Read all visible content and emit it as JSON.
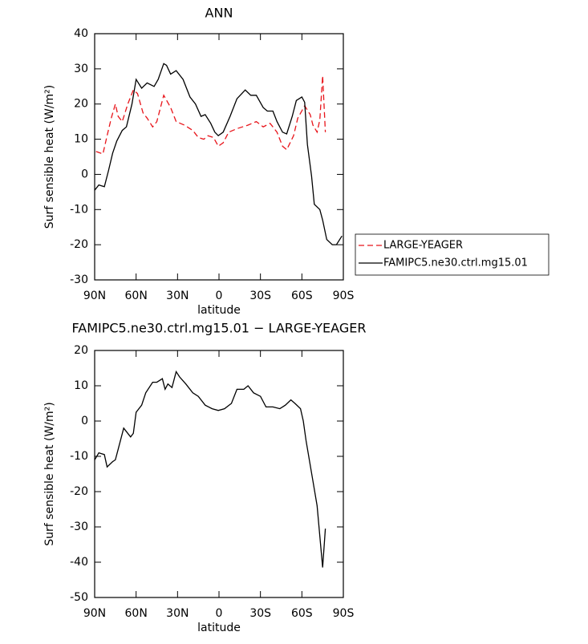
{
  "chart_data": [
    {
      "type": "line",
      "title": "ANN",
      "xlabel": "latitude",
      "ylabel": "Surf sensible heat (W/m²)",
      "xlim": [
        90,
        -90
      ],
      "xticks": [
        {
          "value": 90,
          "label": "90N"
        },
        {
          "value": 60,
          "label": "60N"
        },
        {
          "value": 30,
          "label": "30N"
        },
        0,
        {
          "value": -30,
          "label": "30S"
        },
        {
          "value": -60,
          "label": "60S"
        },
        {
          "value": -90,
          "label": "90S"
        }
      ],
      "ylim": [
        -30,
        40
      ],
      "yticks": [
        -30,
        -20,
        -10,
        0,
        10,
        20,
        30,
        40
      ],
      "legend": "outside-right",
      "series": [
        {
          "name": "LARGE-YEAGER",
          "color": "#e8141a",
          "style": "dashed",
          "x": [
            89,
            84,
            81,
            78,
            75,
            73,
            70,
            66,
            62,
            59,
            55,
            52,
            48,
            45,
            40,
            35,
            31,
            25,
            19,
            15,
            11,
            8,
            4,
            0.5,
            -3,
            -7,
            -13,
            -21,
            -27,
            -32,
            -37,
            -42,
            -46,
            -49,
            -54,
            -57,
            -62,
            -66,
            -68,
            -71,
            -73,
            -75,
            -76,
            -77
          ],
          "values": [
            6.5,
            5.8,
            11,
            16,
            20,
            16.5,
            15,
            20,
            24,
            23,
            17.5,
            16,
            13.5,
            15,
            22.5,
            19,
            15,
            14,
            12.5,
            10.5,
            10,
            11,
            10.5,
            8,
            9,
            12,
            13,
            14,
            15,
            13.5,
            14.5,
            12,
            8,
            7,
            11,
            16,
            19.5,
            17,
            14,
            12,
            15.5,
            28,
            20,
            12
          ]
        },
        {
          "name": "FAMIPC5.ne30.ctrl.mg15.01",
          "color": "#000000",
          "style": "solid",
          "x": [
            90,
            87,
            83,
            80,
            77,
            74,
            70,
            67,
            63,
            60,
            56,
            52,
            47,
            44,
            40,
            38,
            35,
            31,
            26,
            21,
            17,
            13,
            10,
            6,
            3,
            0.5,
            -3,
            -8,
            -13,
            -19,
            -23,
            -27,
            -32,
            -35,
            -39,
            -42,
            -46,
            -49,
            -53,
            -56,
            -60,
            -62,
            -64,
            -67,
            -69,
            -73,
            -75,
            -78,
            -82,
            -85,
            -89
          ],
          "values": [
            -4.5,
            -3,
            -3.5,
            1,
            6,
            9.5,
            12.5,
            13.5,
            20,
            27,
            24.5,
            26,
            25,
            27,
            31.5,
            31,
            28.5,
            29.5,
            27,
            22,
            20,
            16.5,
            17,
            14.5,
            12,
            11,
            12,
            16.5,
            21.5,
            24,
            22.5,
            22.5,
            19,
            18,
            18,
            15,
            12,
            11.5,
            16.5,
            21,
            22,
            20.5,
            8.5,
            -0.5,
            -8.5,
            -10,
            -13,
            -18.5,
            -20,
            -20,
            -17.5
          ]
        }
      ]
    },
    {
      "type": "line",
      "title": "FAMIPC5.ne30.ctrl.mg15.01 − LARGE-YEAGER",
      "xlabel": "latitude",
      "ylabel": "Surf sensible heat (W/m²)",
      "xlim": [
        90,
        -90
      ],
      "xticks": [
        {
          "value": 90,
          "label": "90N"
        },
        {
          "value": 60,
          "label": "60N"
        },
        {
          "value": 30,
          "label": "30N"
        },
        0,
        {
          "value": -30,
          "label": "30S"
        },
        {
          "value": -60,
          "label": "60S"
        },
        {
          "value": -90,
          "label": "90S"
        }
      ],
      "ylim": [
        -50,
        20
      ],
      "yticks": [
        -50,
        -40,
        -30,
        -20,
        -10,
        0,
        10,
        20
      ],
      "series": [
        {
          "color": "#000000",
          "style": "solid",
          "x": [
            90,
            87,
            83,
            81,
            77,
            75,
            73,
            69,
            67,
            64,
            62,
            60,
            56,
            53,
            48,
            45,
            41,
            39,
            37,
            34,
            31,
            28.5,
            24,
            19,
            15,
            10,
            5,
            0.5,
            -4,
            -9,
            -13,
            -18,
            -21,
            -25,
            -30,
            -34,
            -39,
            -44,
            -48,
            -52,
            -55,
            -59,
            -61,
            -63,
            -68,
            -71,
            -75,
            -77
          ],
          "values": [
            -11,
            -9,
            -9.5,
            -13,
            -11.5,
            -11,
            -8,
            -2,
            -3,
            -4.5,
            -3.5,
            2.5,
            4.5,
            8,
            11,
            11,
            12,
            9,
            10.5,
            9.5,
            14,
            12.5,
            10.5,
            8,
            7,
            4.5,
            3.5,
            3,
            3.5,
            5,
            9,
            9,
            10,
            8,
            7,
            4,
            4,
            3.5,
            4.5,
            6,
            5,
            3.5,
            0,
            -5.5,
            -17,
            -24,
            -41.5,
            -30.5
          ]
        }
      ]
    }
  ]
}
